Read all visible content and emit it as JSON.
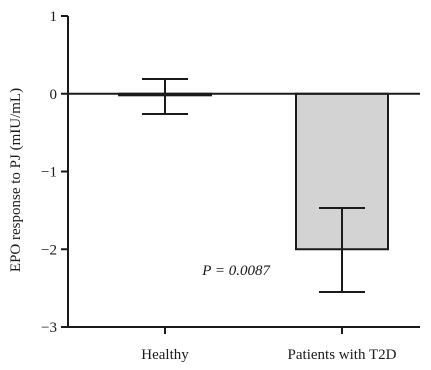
{
  "chart_data": {
    "type": "bar",
    "categories": [
      "Healthy",
      "Patients with T2D"
    ],
    "values": [
      -0.02,
      -2.0
    ],
    "error": [
      {
        "low": -0.26,
        "high": 0.19
      },
      {
        "low": -2.55,
        "high": -1.47
      }
    ],
    "ylabel": "EPO response to PJ (mIU/mL)",
    "xlabel": "",
    "ylim": [
      -3,
      1
    ],
    "yticks": [
      1,
      0,
      -1,
      -2,
      -3
    ],
    "ytick_labels": [
      "1",
      "0",
      "−1",
      "−2",
      "−3"
    ],
    "annotation": "P = 0.0087",
    "bar_colors": [
      "#ffffff",
      "#d3d3d3"
    ],
    "edge_color": "#1a1a1a",
    "grid": false
  }
}
